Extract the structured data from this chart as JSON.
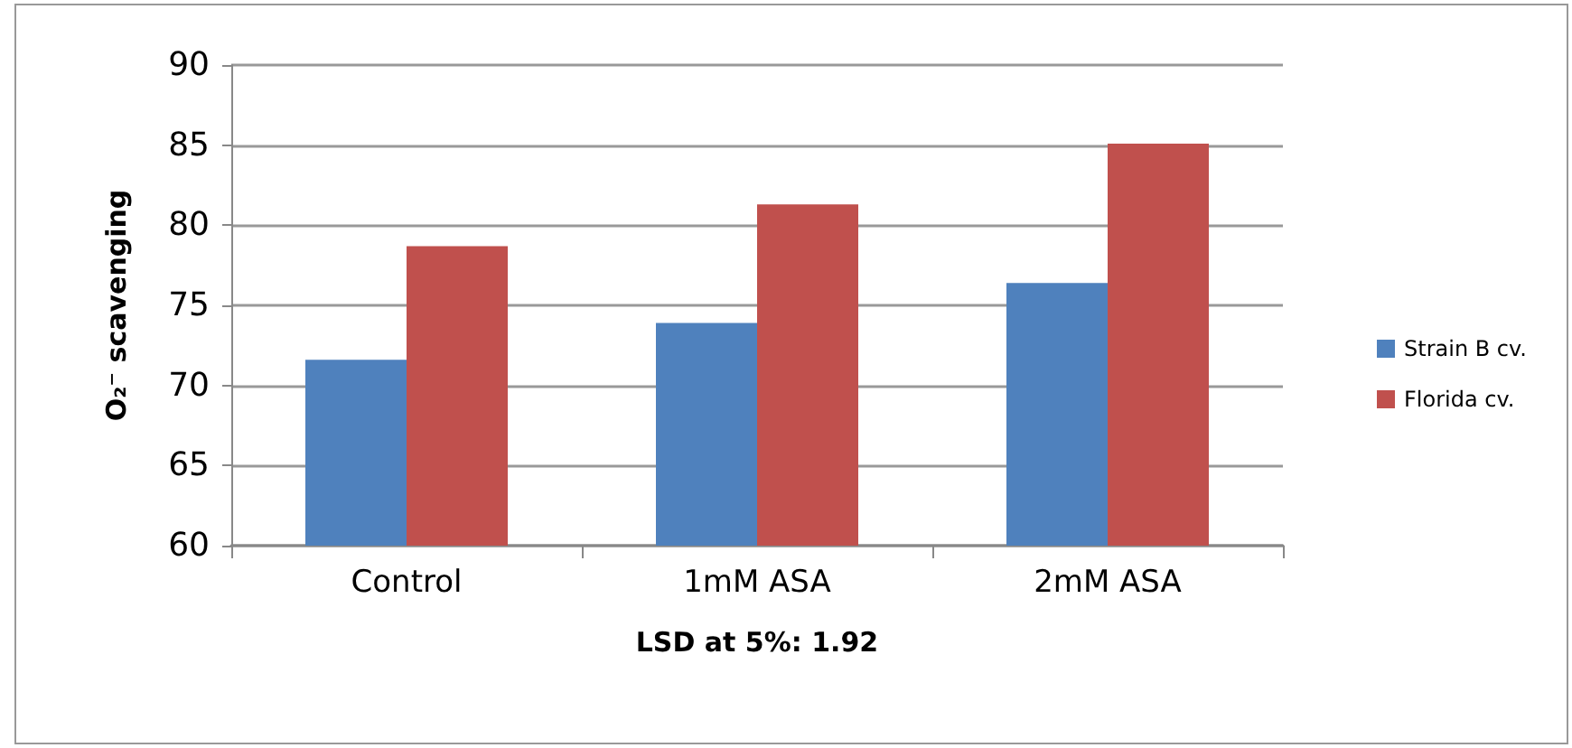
{
  "chart_data": {
    "type": "bar",
    "xlabel": "LSD at 5%: 1.92",
    "ylabel": "O₂⁻ scavenging",
    "categories": [
      "Control",
      "1mM ASA",
      "2mM ASA"
    ],
    "series": [
      {
        "name": "Strain B cv.",
        "color": "#4f81bd",
        "values": [
          71.6,
          73.9,
          76.4
        ]
      },
      {
        "name": "Florida cv.",
        "color": "#c0504d",
        "values": [
          78.7,
          81.3,
          85.1
        ]
      }
    ],
    "ylim": [
      60,
      90
    ],
    "yticks": [
      60,
      65,
      70,
      75,
      80,
      85,
      90
    ],
    "grid": "y",
    "legend": "right"
  }
}
